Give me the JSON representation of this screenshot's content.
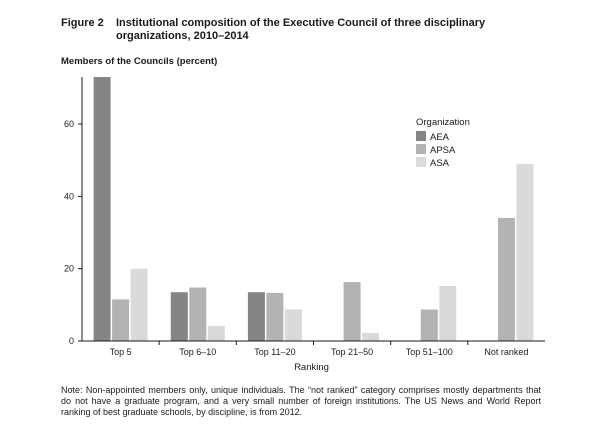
{
  "figure": {
    "label": "Figure 2",
    "title": "Institutional composition of the Executive Council of three disciplinary organizations, 2010–2014"
  },
  "note": "Note: Non-appointed members only, unique individuals. The “not ranked” category comprises mostly departments that do not have a graduate program, and a very small number of foreign institutions. The US News and World Report ranking of best graduate schools, by discipline, is from 2012.",
  "chart_data": {
    "type": "bar",
    "title": "",
    "ylabel": "Members of the Councils (percent)",
    "xlabel": "Ranking",
    "ylim": [
      0,
      73
    ],
    "yticks": [
      0,
      20,
      40,
      60
    ],
    "grid": false,
    "legend": {
      "title": "Organization",
      "placement": "top-right"
    },
    "categories": [
      "Top 5",
      "Top 6–10",
      "Top 11–20",
      "Top 21–50",
      "Top 51–100",
      "Not ranked"
    ],
    "series": [
      {
        "name": "AEA",
        "color": "#858585",
        "values": [
          73,
          13.5,
          13.5,
          0,
          0,
          0
        ]
      },
      {
        "name": "APSA",
        "color": "#b3b3b3",
        "values": [
          11.5,
          14.8,
          13.3,
          16.3,
          8.7,
          34
        ]
      },
      {
        "name": "ASA",
        "color": "#dadada",
        "values": [
          20,
          4.2,
          8.7,
          2.2,
          15.2,
          49
        ]
      }
    ]
  }
}
